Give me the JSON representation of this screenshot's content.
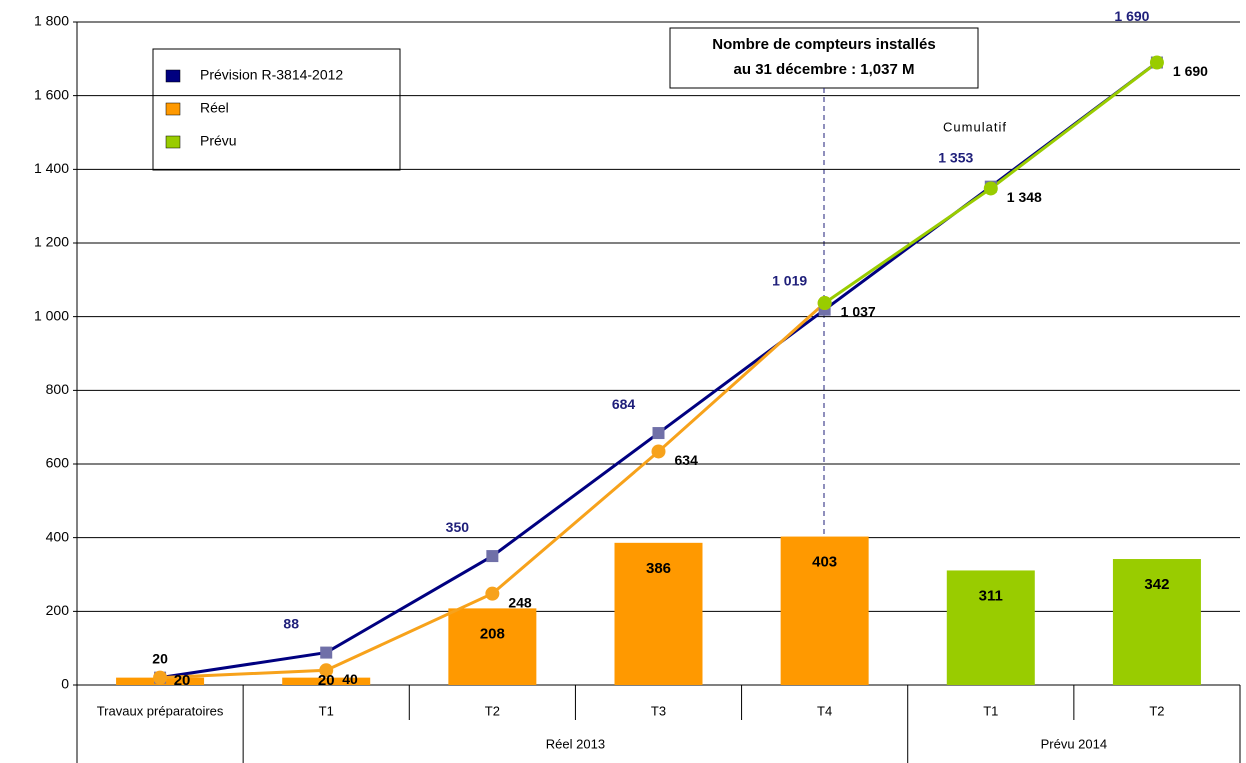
{
  "chart_data": {
    "type": "bar_line",
    "categories": [
      "Travaux préparatoires",
      "T1",
      "T2",
      "T3",
      "T4",
      "T1",
      "T2"
    ],
    "groups": [
      {
        "label": "Réel 2013",
        "from": 1,
        "to": 4
      },
      {
        "label": "Prévu 2014",
        "from": 5,
        "to": 6
      }
    ],
    "ylim": [
      0,
      1800
    ],
    "yticks": [
      0,
      200,
      400,
      600,
      800,
      {
        "value": 1000,
        "label": "1 000"
      },
      {
        "value": 1200,
        "label": "1 200"
      },
      {
        "value": 1400,
        "label": "1 400"
      },
      {
        "value": 1600,
        "label": "1 600"
      },
      {
        "value": 1800,
        "label": "1 800"
      }
    ],
    "bars": [
      {
        "name": "Réel",
        "color": "#ff9900",
        "values": [
          20,
          20,
          208,
          386,
          403,
          null,
          null
        ]
      },
      {
        "name": "Prévu",
        "color": "#99cc00",
        "values": [
          null,
          null,
          null,
          null,
          null,
          311,
          342
        ]
      }
    ],
    "lines": [
      {
        "name": "Prévision R-3814-2012",
        "color": "#000080",
        "marker_color": "#7070a8",
        "label_color": "#1f1f7a",
        "values": [
          20,
          88,
          350,
          684,
          1019,
          1353,
          1690
        ],
        "value_labels": [
          null,
          "88",
          "350",
          "684",
          "1 019",
          "1 353",
          "1 690"
        ]
      },
      {
        "line_of": "Réel",
        "color": "#f7a21b",
        "marker_color": "#f7a21b",
        "label_color": "#000000",
        "values": [
          20,
          40,
          248,
          634,
          1037,
          null,
          null
        ],
        "value_labels": [
          "20",
          "40",
          "248",
          "634",
          "1 037",
          null,
          null
        ]
      },
      {
        "line_of": "Prévu",
        "color": "#99cc00",
        "marker_color": "#99cc00",
        "label_color": "#000000",
        "values": [
          null,
          null,
          null,
          null,
          1037,
          1348,
          1690
        ],
        "value_labels": [
          null,
          null,
          null,
          null,
          null,
          "1 348",
          "1 690"
        ]
      }
    ],
    "legend": [
      "Prévision R-3814-2012",
      "Réel",
      "Prévu"
    ],
    "annotation": [
      "Nombre de compteurs installés",
      "au 31 décembre : 1,037 M"
    ],
    "annotation_cumulatif": "Cumulatif"
  }
}
